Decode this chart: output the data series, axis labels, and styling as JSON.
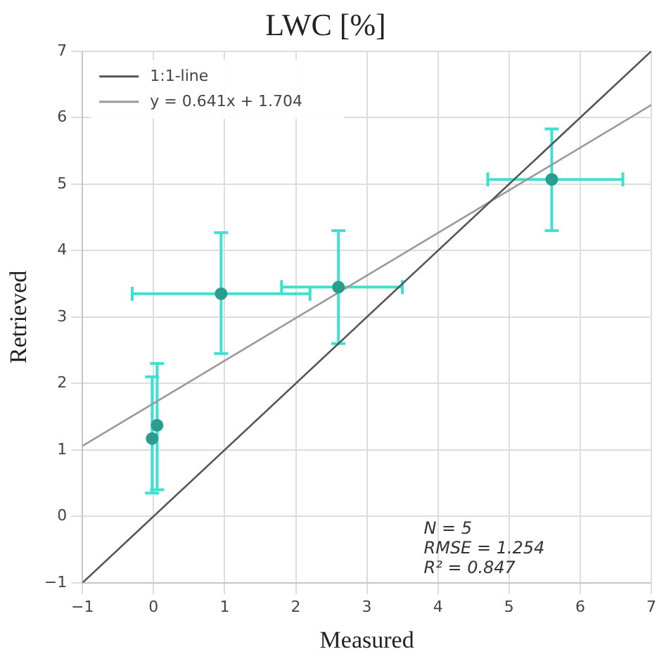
{
  "chart_data": {
    "type": "scatter",
    "title": "LWC [%]",
    "xlabel": "Measured",
    "ylabel": "Retrieved",
    "xlim": [
      -1,
      7
    ],
    "ylim": [
      -1,
      7
    ],
    "xticks": [
      -1,
      0,
      1,
      2,
      3,
      4,
      5,
      6,
      7
    ],
    "yticks": [
      -1,
      0,
      1,
      2,
      3,
      4,
      5,
      6,
      7
    ],
    "grid": true,
    "legend": "top left",
    "marker": "circle",
    "series": [
      {
        "color": "#2a9d8f",
        "x": [
          0.05,
          -0.02,
          0.95,
          2.6,
          5.6
        ],
        "values": [
          1.37,
          1.17,
          3.35,
          3.45,
          5.07
        ],
        "errors": [
          [
            0.4,
            2.3
          ],
          [
            0.35,
            2.1
          ],
          [
            2.45,
            4.27
          ],
          [
            2.6,
            4.3
          ],
          [
            4.3,
            5.83
          ]
        ],
        "xerrors": [
          null,
          null,
          [
            -0.3,
            2.2
          ],
          [
            1.8,
            3.5
          ],
          [
            4.7,
            6.6
          ]
        ]
      },
      {
        "type": "line",
        "name": "1:1-line",
        "color": "#555555",
        "x": [
          -1,
          7
        ],
        "values": [
          -1,
          7
        ],
        "line_style": "solid",
        "marker": "none"
      },
      {
        "type": "line",
        "name": "y = 0.641x + 1.704",
        "color": "#999999",
        "x": [
          -1,
          7
        ],
        "values": [
          1.06,
          6.19
        ],
        "line_style": "solid",
        "marker": "none"
      }
    ],
    "annotations": [
      "N = 5",
      "RMSE = 1.254",
      "R² = 0.847"
    ]
  }
}
